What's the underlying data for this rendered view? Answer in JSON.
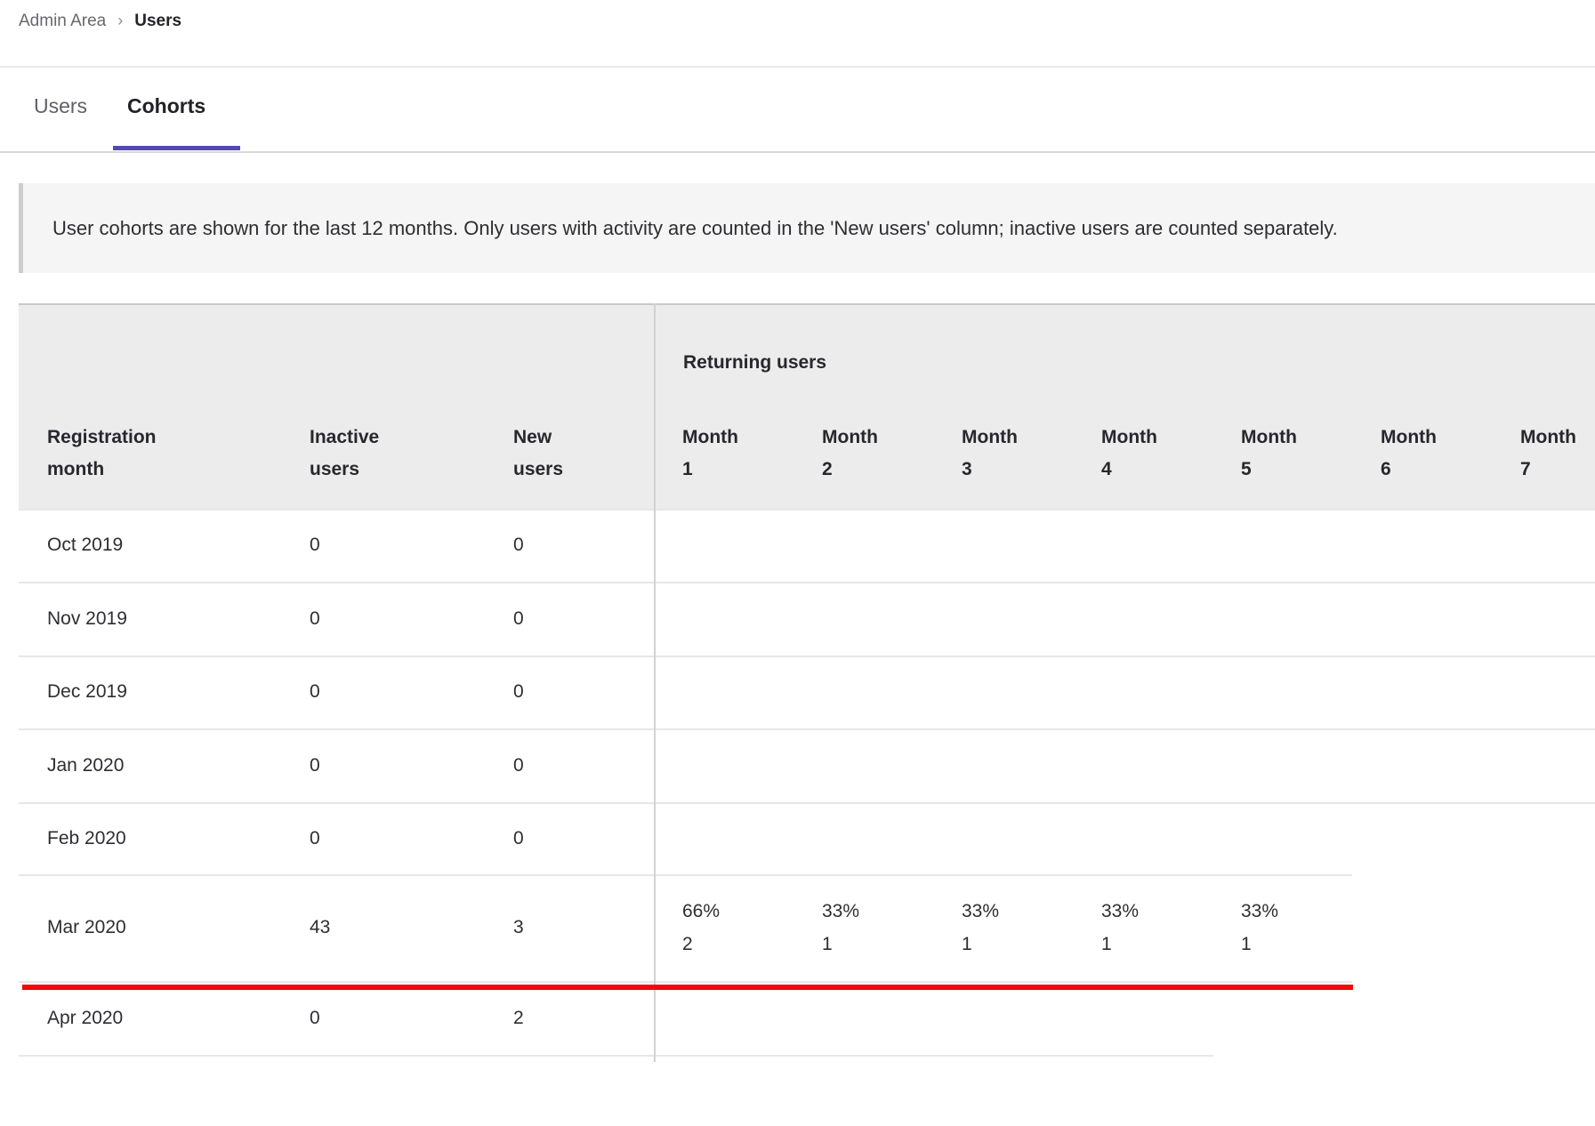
{
  "breadcrumb": {
    "items": [
      "Admin Area",
      "Users"
    ],
    "separator": "›"
  },
  "tabs": [
    {
      "label": "Users",
      "active": false
    },
    {
      "label": "Cohorts",
      "active": true
    }
  ],
  "notice": "User cohorts are shown for the last 12 months. Only users with activity are counted in the 'New users' column; inactive users are counted separately.",
  "table": {
    "group_header": "Returning users",
    "columns": {
      "registration": "Registration month",
      "inactive": "Inactive users",
      "new": "New users",
      "months": [
        "Month 1",
        "Month 2",
        "Month 3",
        "Month 4",
        "Month 5",
        "Month 6",
        "Month 7"
      ]
    },
    "rows": [
      {
        "month": "Oct 2019",
        "inactive": "0",
        "new": "0",
        "returning": []
      },
      {
        "month": "Nov 2019",
        "inactive": "0",
        "new": "0",
        "returning": []
      },
      {
        "month": "Dec 2019",
        "inactive": "0",
        "new": "0",
        "returning": []
      },
      {
        "month": "Jan 2020",
        "inactive": "0",
        "new": "0",
        "returning": []
      },
      {
        "month": "Feb 2020",
        "inactive": "0",
        "new": "0",
        "returning": []
      },
      {
        "month": "Mar 2020",
        "inactive": "43",
        "new": "3",
        "returning": [
          {
            "pct": "66%",
            "count": "2"
          },
          {
            "pct": "33%",
            "count": "1"
          },
          {
            "pct": "33%",
            "count": "1"
          },
          {
            "pct": "33%",
            "count": "1"
          },
          {
            "pct": "33%",
            "count": "1"
          }
        ]
      },
      {
        "month": "Apr 2020",
        "inactive": "0",
        "new": "2",
        "returning": []
      }
    ]
  },
  "annotation": {
    "type": "red-underline-on-row",
    "target_row": "Mar 2020",
    "color": "#f50707"
  },
  "colors": {
    "active_tab_underline": "#5249b4",
    "header_background": "#ececec"
  }
}
